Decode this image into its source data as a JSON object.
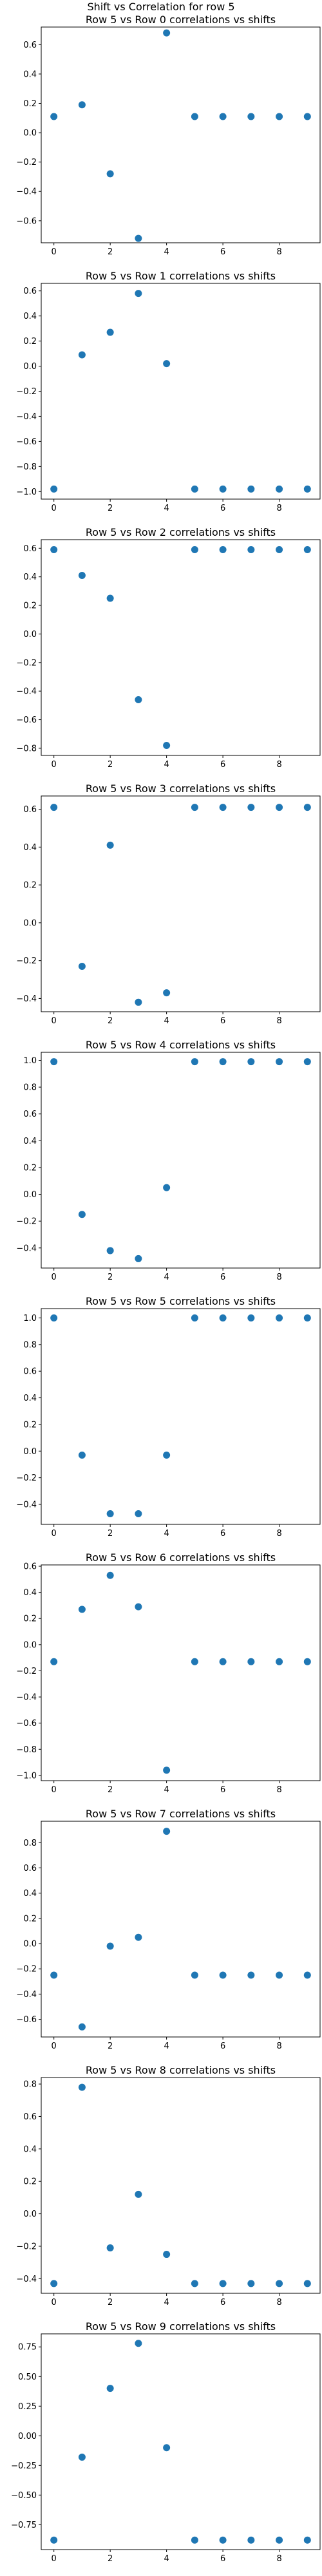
{
  "figure": {
    "suptitle": "Shift vs Correlation for row 5",
    "marker_color": "#1f77b4"
  },
  "chart_data": [
    {
      "type": "scatter",
      "title": "Row 5 vs Row 0 correlations vs shifts",
      "x": [
        0,
        1,
        2,
        3,
        4,
        5,
        6,
        7,
        8,
        9
      ],
      "y": [
        0.11,
        0.19,
        -0.28,
        -0.72,
        0.68,
        0.11,
        0.11,
        0.11,
        0.11,
        0.11
      ],
      "xlim": [
        -0.45,
        9.45
      ],
      "ylim": [
        -0.75,
        0.72
      ],
      "xticks": [
        0,
        2,
        4,
        6,
        8
      ],
      "yticks": [
        -0.6,
        -0.4,
        -0.2,
        0.0,
        0.2,
        0.4,
        0.6
      ],
      "ytick_labels": [
        "−0.6",
        "−0.4",
        "−0.2",
        "0.0",
        "0.2",
        "0.4",
        "0.6"
      ]
    },
    {
      "type": "scatter",
      "title": "Row 5 vs Row 1 correlations vs shifts",
      "x": [
        0,
        1,
        2,
        3,
        4,
        5,
        6,
        7,
        8,
        9
      ],
      "y": [
        -0.98,
        0.09,
        0.27,
        0.58,
        0.02,
        -0.98,
        -0.98,
        -0.98,
        -0.98,
        -0.98
      ],
      "xlim": [
        -0.45,
        9.45
      ],
      "ylim": [
        -1.06,
        0.66
      ],
      "xticks": [
        0,
        2,
        4,
        6,
        8
      ],
      "yticks": [
        -1.0,
        -0.8,
        -0.6,
        -0.4,
        -0.2,
        0.0,
        0.2,
        0.4,
        0.6
      ],
      "ytick_labels": [
        "−1.0",
        "−0.8",
        "−0.6",
        "−0.4",
        "−0.2",
        "0.0",
        "0.2",
        "0.4",
        "0.6"
      ]
    },
    {
      "type": "scatter",
      "title": "Row 5 vs Row 2 correlations vs shifts",
      "x": [
        0,
        1,
        2,
        3,
        4,
        5,
        6,
        7,
        8,
        9
      ],
      "y": [
        0.59,
        0.41,
        0.25,
        -0.46,
        -0.78,
        0.59,
        0.59,
        0.59,
        0.59,
        0.59
      ],
      "xlim": [
        -0.45,
        9.45
      ],
      "ylim": [
        -0.85,
        0.66
      ],
      "xticks": [
        0,
        2,
        4,
        6,
        8
      ],
      "yticks": [
        -0.8,
        -0.6,
        -0.4,
        -0.2,
        0.0,
        0.2,
        0.4,
        0.6
      ],
      "ytick_labels": [
        "−0.8",
        "−0.6",
        "−0.4",
        "−0.2",
        "0.0",
        "0.2",
        "0.4",
        "0.6"
      ]
    },
    {
      "type": "scatter",
      "title": "Row 5 vs Row 3 correlations vs shifts",
      "x": [
        0,
        1,
        2,
        3,
        4,
        5,
        6,
        7,
        8,
        9
      ],
      "y": [
        0.61,
        -0.23,
        0.41,
        -0.42,
        -0.37,
        0.61,
        0.61,
        0.61,
        0.61,
        0.61
      ],
      "xlim": [
        -0.45,
        9.45
      ],
      "ylim": [
        -0.47,
        0.67
      ],
      "xticks": [
        0,
        2,
        4,
        6,
        8
      ],
      "yticks": [
        -0.4,
        -0.2,
        0.0,
        0.2,
        0.4,
        0.6
      ],
      "ytick_labels": [
        "−0.4",
        "−0.2",
        "0.0",
        "0.2",
        "0.4",
        "0.6"
      ]
    },
    {
      "type": "scatter",
      "title": "Row 5 vs Row 4 correlations vs shifts",
      "x": [
        0,
        1,
        2,
        3,
        4,
        5,
        6,
        7,
        8,
        9
      ],
      "y": [
        0.99,
        -0.15,
        -0.42,
        -0.48,
        0.05,
        0.99,
        0.99,
        0.99,
        0.99,
        0.99
      ],
      "xlim": [
        -0.45,
        9.45
      ],
      "ylim": [
        -0.55,
        1.06
      ],
      "xticks": [
        0,
        2,
        4,
        6,
        8
      ],
      "yticks": [
        -0.4,
        -0.2,
        0.0,
        0.2,
        0.4,
        0.6,
        0.8,
        1.0
      ],
      "ytick_labels": [
        "−0.4",
        "−0.2",
        "0.0",
        "0.2",
        "0.4",
        "0.6",
        "0.8",
        "1.0"
      ]
    },
    {
      "type": "scatter",
      "title": "Row 5 vs Row 5 correlations vs shifts",
      "x": [
        0,
        1,
        2,
        3,
        4,
        5,
        6,
        7,
        8,
        9
      ],
      "y": [
        1.0,
        -0.03,
        -0.47,
        -0.47,
        -0.03,
        1.0,
        1.0,
        1.0,
        1.0,
        1.0
      ],
      "xlim": [
        -0.45,
        9.45
      ],
      "ylim": [
        -0.55,
        1.07
      ],
      "xticks": [
        0,
        2,
        4,
        6,
        8
      ],
      "yticks": [
        -0.4,
        -0.2,
        0.0,
        0.2,
        0.4,
        0.6,
        0.8,
        1.0
      ],
      "ytick_labels": [
        "−0.4",
        "−0.2",
        "0.0",
        "0.2",
        "0.4",
        "0.6",
        "0.8",
        "1.0"
      ]
    },
    {
      "type": "scatter",
      "title": "Row 5 vs Row 6 correlations vs shifts",
      "x": [
        0,
        1,
        2,
        3,
        4,
        5,
        6,
        7,
        8,
        9
      ],
      "y": [
        -0.13,
        0.27,
        0.53,
        0.29,
        -0.96,
        -0.13,
        -0.13,
        -0.13,
        -0.13,
        -0.13
      ],
      "xlim": [
        -0.45,
        9.45
      ],
      "ylim": [
        -1.04,
        0.61
      ],
      "xticks": [
        0,
        2,
        4,
        6,
        8
      ],
      "yticks": [
        -1.0,
        -0.8,
        -0.6,
        -0.4,
        -0.2,
        0.0,
        0.2,
        0.4,
        0.6
      ],
      "ytick_labels": [
        "−1.0",
        "−0.8",
        "−0.6",
        "−0.4",
        "−0.2",
        "0.0",
        "0.2",
        "0.4",
        "0.6"
      ]
    },
    {
      "type": "scatter",
      "title": "Row 5 vs Row 7 correlations vs shifts",
      "x": [
        0,
        1,
        2,
        3,
        4,
        5,
        6,
        7,
        8,
        9
      ],
      "y": [
        -0.25,
        -0.66,
        -0.02,
        0.05,
        0.89,
        -0.25,
        -0.25,
        -0.25,
        -0.25,
        -0.25
      ],
      "xlim": [
        -0.45,
        9.45
      ],
      "ylim": [
        -0.74,
        0.97
      ],
      "xticks": [
        0,
        2,
        4,
        6,
        8
      ],
      "yticks": [
        -0.6,
        -0.4,
        -0.2,
        0.0,
        0.2,
        0.4,
        0.6,
        0.8
      ],
      "ytick_labels": [
        "−0.6",
        "−0.4",
        "−0.2",
        "0.0",
        "0.2",
        "0.4",
        "0.6",
        "0.8"
      ]
    },
    {
      "type": "scatter",
      "title": "Row 5 vs Row 8 correlations vs shifts",
      "x": [
        0,
        1,
        2,
        3,
        4,
        5,
        6,
        7,
        8,
        9
      ],
      "y": [
        -0.43,
        0.78,
        -0.21,
        0.12,
        -0.25,
        -0.43,
        -0.43,
        -0.43,
        -0.43,
        -0.43
      ],
      "xlim": [
        -0.45,
        9.45
      ],
      "ylim": [
        -0.49,
        0.84
      ],
      "xticks": [
        0,
        2,
        4,
        6,
        8
      ],
      "yticks": [
        -0.4,
        -0.2,
        0.0,
        0.2,
        0.4,
        0.6,
        0.8
      ],
      "ytick_labels": [
        "−0.4",
        "−0.2",
        "0.0",
        "0.2",
        "0.4",
        "0.6",
        "0.8"
      ]
    },
    {
      "type": "scatter",
      "title": "Row 5 vs Row 9 correlations vs shifts",
      "x": [
        0,
        1,
        2,
        3,
        4,
        5,
        6,
        7,
        8,
        9
      ],
      "y": [
        -0.88,
        -0.18,
        0.4,
        0.78,
        -0.1,
        -0.88,
        -0.88,
        -0.88,
        -0.88,
        -0.88
      ],
      "xlim": [
        -0.45,
        9.45
      ],
      "ylim": [
        -0.96,
        0.86
      ],
      "xticks": [
        0,
        2,
        4,
        6,
        8
      ],
      "yticks": [
        -0.75,
        -0.5,
        -0.25,
        0.0,
        0.25,
        0.5,
        0.75
      ],
      "ytick_labels": [
        "−0.75",
        "−0.50",
        "−0.25",
        "0.00",
        "0.25",
        "0.50",
        "0.75"
      ]
    }
  ]
}
